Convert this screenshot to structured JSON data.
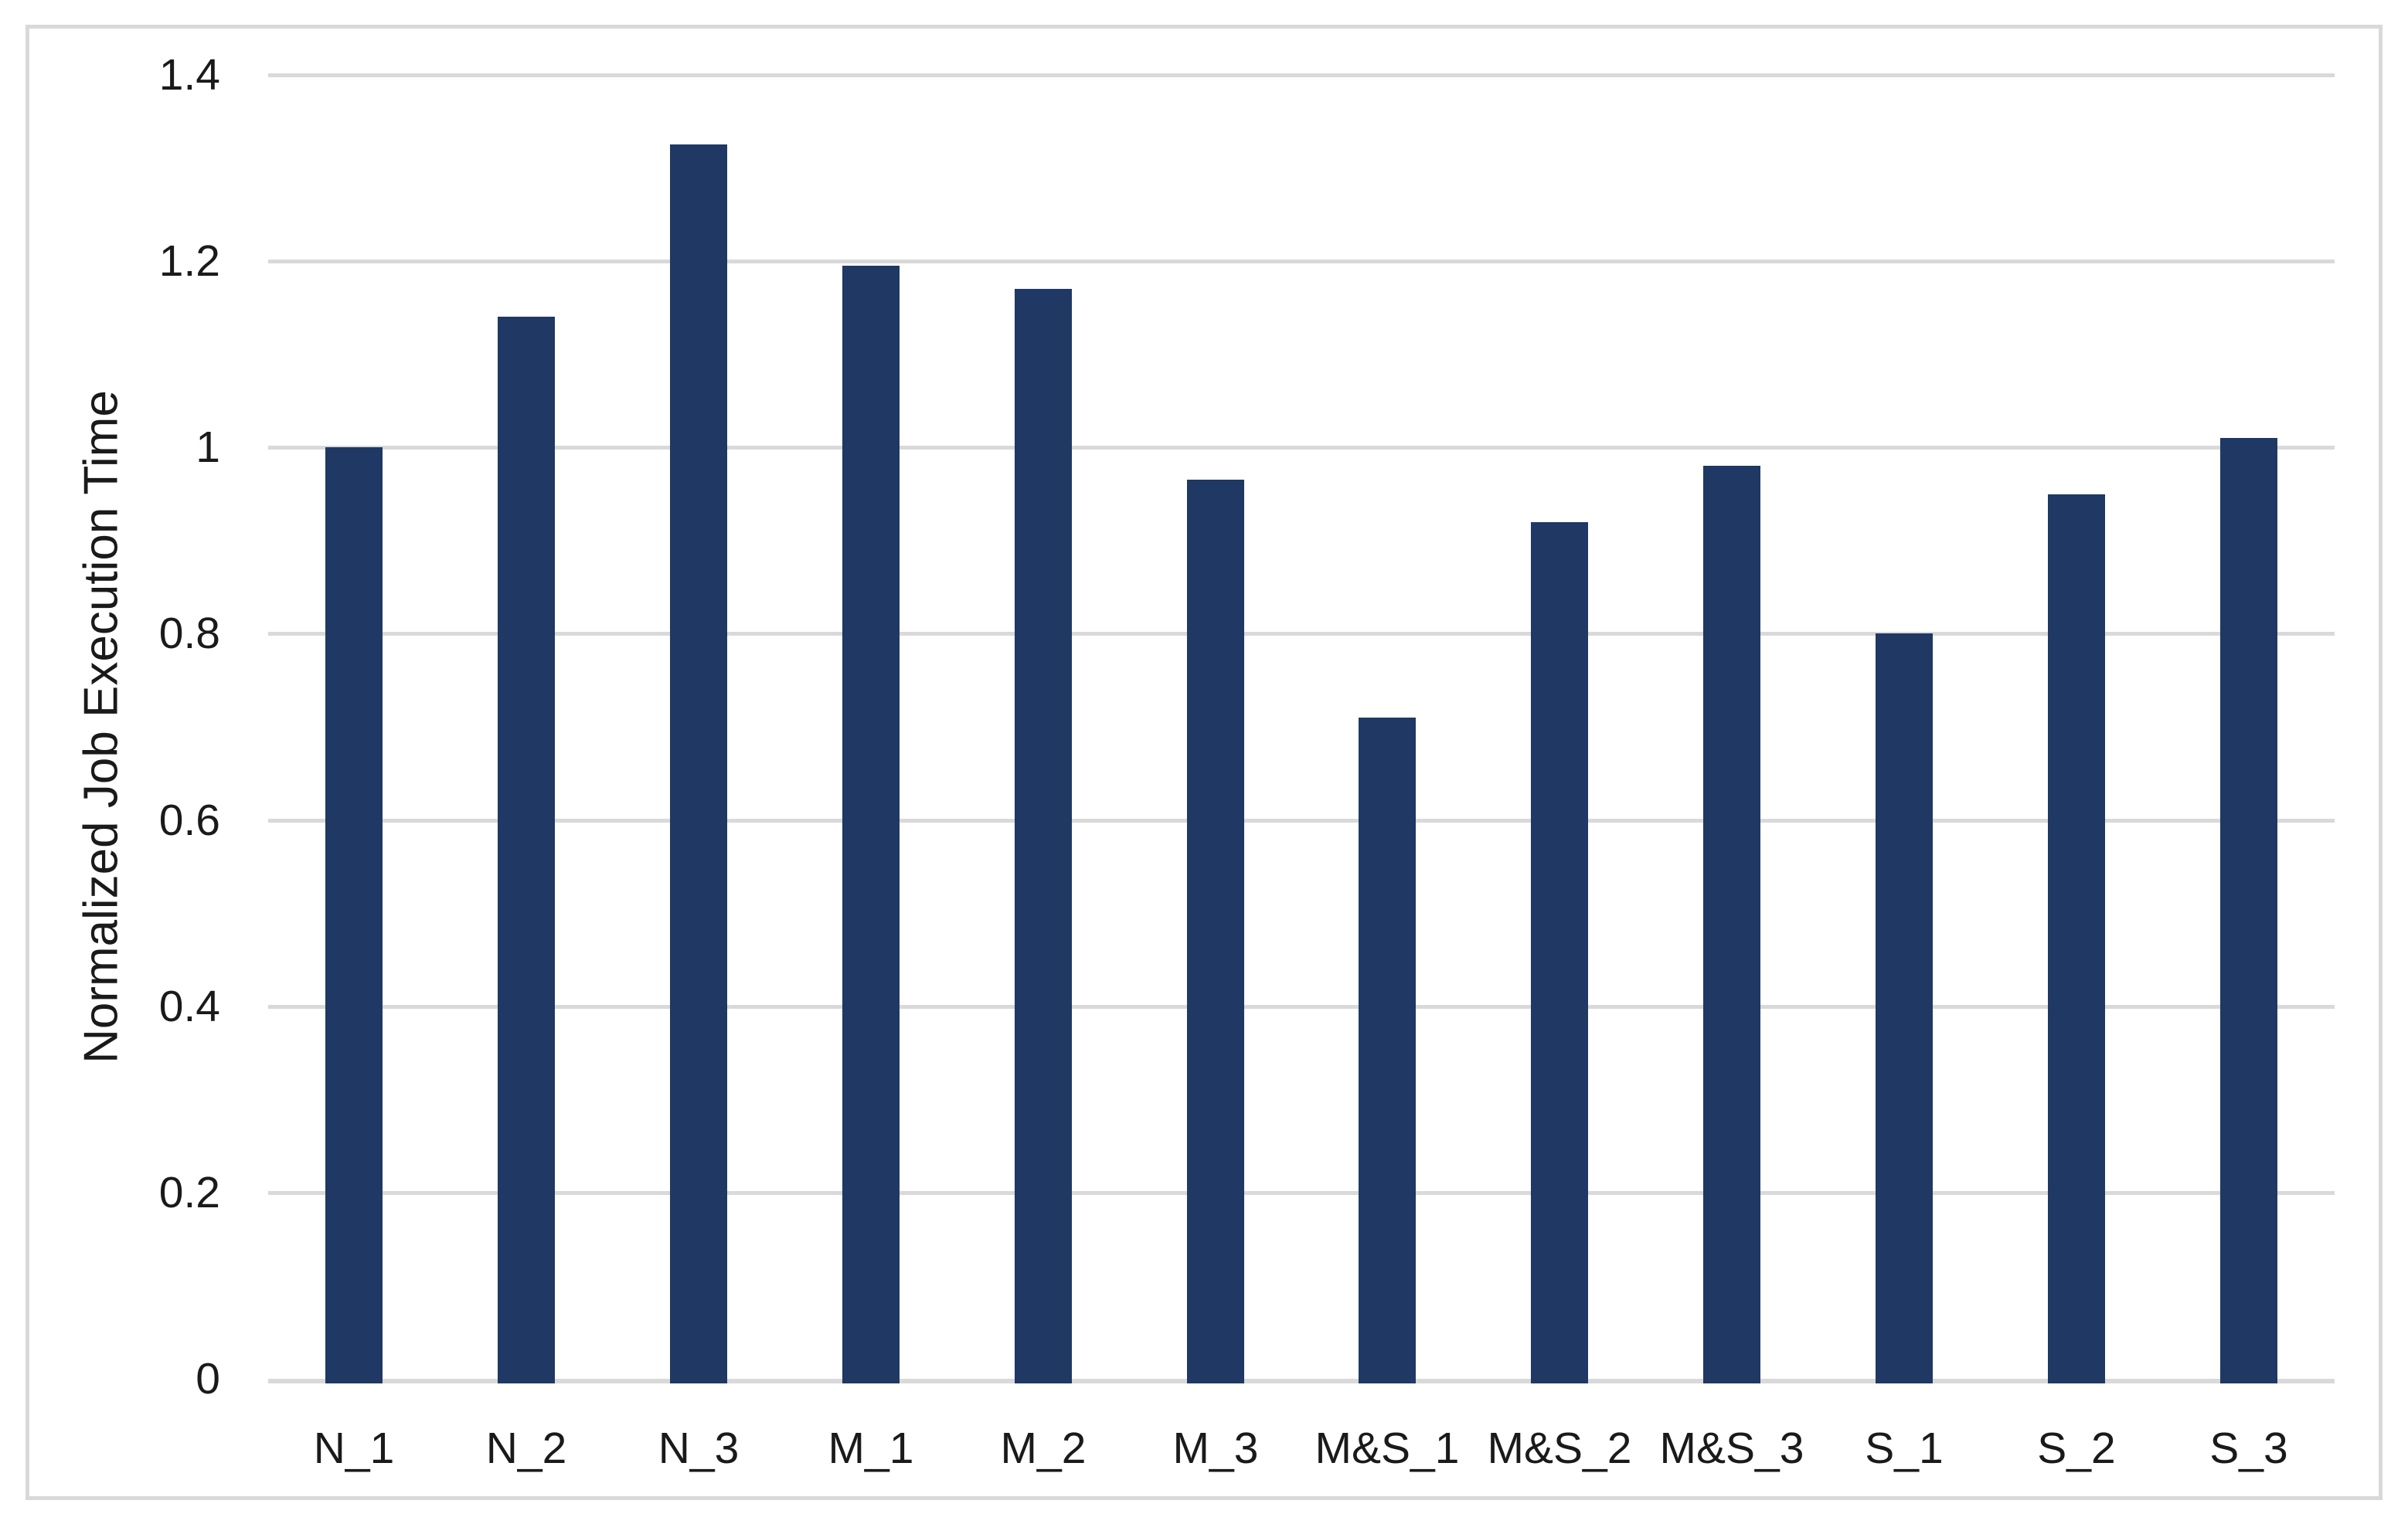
{
  "figure": {
    "background": "#ffffff",
    "frame_color": "#d9d9d9"
  },
  "chart_data": {
    "type": "bar",
    "title": "",
    "xlabel": "",
    "ylabel": "Normalized Job Execution Time",
    "categories": [
      "N_1",
      "N_2",
      "N_3",
      "M_1",
      "M_2",
      "M_3",
      "M&S_1",
      "M&S_2",
      "M&S_3",
      "S_1",
      "S_2",
      "S_3"
    ],
    "values": [
      1.0,
      1.14,
      1.325,
      1.195,
      1.17,
      0.965,
      0.71,
      0.92,
      0.98,
      0.8,
      0.95,
      1.01
    ],
    "ylim": [
      0,
      1.4
    ],
    "yticks": [
      0,
      0.2,
      0.4,
      0.6,
      0.8,
      1,
      1.2,
      1.4
    ],
    "ytick_labels": [
      "0",
      "0.2",
      "0.4",
      "0.6",
      "0.8",
      "1",
      "1.2",
      "1.4"
    ],
    "grid": "horizontal-only",
    "legend_position": "none",
    "bar_color": "#1f3864",
    "gridline_color": "#d9d9d9",
    "axis_text_color": "#1a1a1a"
  }
}
